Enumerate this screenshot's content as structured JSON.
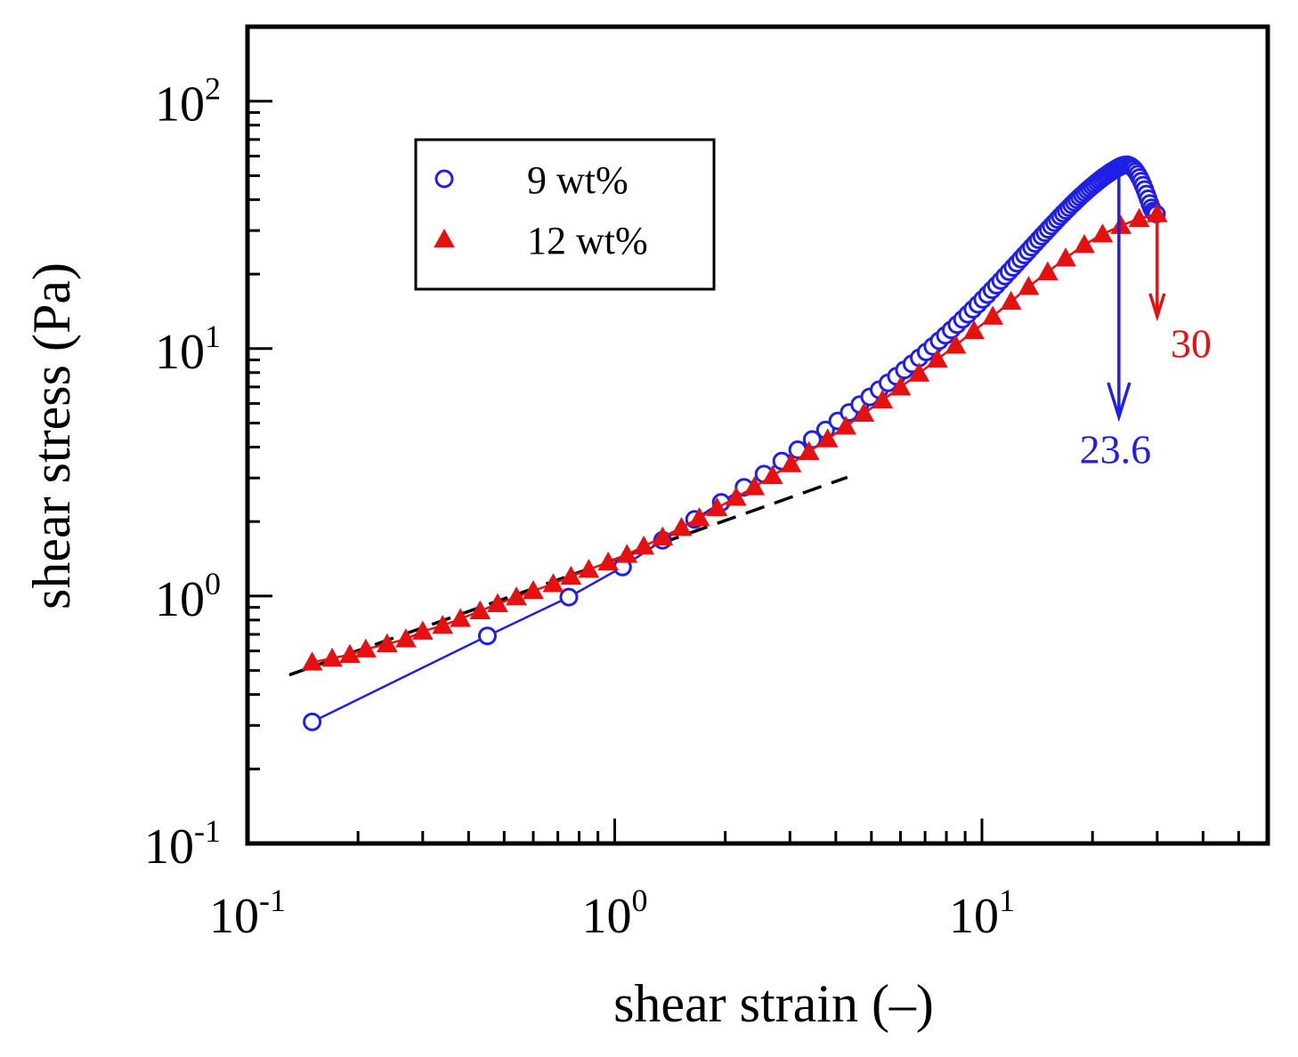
{
  "chart_data": {
    "type": "scatter",
    "xscale": "log",
    "yscale": "log",
    "xlim": [
      0.1,
      60
    ],
    "ylim": [
      0.1,
      200
    ],
    "xlabel": "shear strain (–)",
    "ylabel": "shear stress (Pa)",
    "xticks": [
      {
        "base": "10",
        "exp": "-1"
      },
      {
        "base": "10",
        "exp": "0"
      },
      {
        "base": "10",
        "exp": "1"
      }
    ],
    "yticks": [
      {
        "base": "10",
        "exp": "-1"
      },
      {
        "base": "10",
        "exp": "0"
      },
      {
        "base": "10",
        "exp": "1"
      },
      {
        "base": "10",
        "exp": "2"
      }
    ],
    "grid": false,
    "legend_position": "top-left",
    "colors": {
      "series_9": "#1f1fe6",
      "series_12": "#e61010",
      "fit": "#000000",
      "axes": "#000000"
    },
    "series": [
      {
        "name": "9 wt%",
        "marker": "open-circle",
        "line": "solid",
        "x": [
          0.15,
          0.45,
          0.75,
          1.05,
          1.35,
          1.65,
          1.95,
          2.25,
          2.55,
          2.85,
          3.15,
          3.45,
          3.75,
          4.05,
          4.35,
          4.65,
          4.95,
          5.25,
          5.55,
          5.85,
          6.15,
          6.45,
          6.75,
          7.05,
          7.35,
          7.65,
          7.95,
          8.25,
          8.55,
          8.85,
          9.15,
          9.45,
          9.75,
          10.05,
          10.35,
          10.65,
          10.95,
          11.25,
          11.55,
          11.85,
          12.15,
          12.45,
          12.75,
          13.05,
          13.35,
          13.65,
          13.95,
          14.25,
          14.55,
          14.85,
          15.15,
          15.45,
          15.75,
          16.05,
          16.35,
          16.65,
          16.95,
          17.25,
          17.55,
          17.85,
          18.15,
          18.45,
          18.75,
          19.05,
          19.35,
          19.65,
          19.95,
          20.25,
          20.55,
          20.85,
          21.15,
          21.45,
          21.75,
          22.05,
          22.35,
          22.65,
          22.95,
          23.25,
          23.55,
          23.85,
          24.15,
          24.45,
          24.75,
          25.05,
          25.35,
          25.65,
          25.95,
          26.25,
          26.55,
          26.85,
          27.15,
          27.45,
          27.75,
          28.05,
          28.35,
          28.65,
          28.95,
          29.25,
          29.55,
          29.85
        ],
        "y": [
          0.31,
          0.69,
          0.99,
          1.31,
          1.68,
          2.04,
          2.39,
          2.75,
          3.11,
          3.51,
          3.9,
          4.29,
          4.69,
          5.1,
          5.52,
          5.94,
          6.38,
          6.82,
          7.27,
          7.73,
          8.2,
          8.68,
          9.18,
          9.69,
          10.21,
          10.76,
          11.32,
          11.91,
          12.51,
          13.13,
          13.77,
          14.43,
          15.11,
          15.82,
          16.54,
          17.28,
          18.04,
          18.83,
          19.63,
          20.46,
          21.29,
          22.14,
          23.02,
          23.9,
          24.79,
          25.7,
          26.61,
          27.55,
          28.48,
          29.41,
          30.37,
          31.33,
          32.29,
          33.27,
          34.25,
          35.19,
          36.15,
          37.12,
          38.1,
          39.04,
          39.98,
          40.94,
          41.82,
          42.71,
          43.62,
          44.49,
          45.36,
          46.18,
          47.02,
          47.85,
          48.63,
          49.41,
          50.14,
          50.85,
          51.58,
          52.2,
          52.86,
          53.45,
          53.99,
          54.55,
          54.96,
          55.26,
          55.37,
          55.17,
          54.75,
          54.06,
          53.19,
          52.04,
          50.7,
          49.17,
          47.52,
          45.77,
          43.97,
          42.12,
          40.32,
          38.57,
          37.06,
          35.94,
          35.26,
          34.98
        ]
      },
      {
        "name": "12 wt%",
        "marker": "filled-triangle",
        "line": "solid",
        "x": [
          0.15,
          0.17,
          0.19,
          0.21,
          0.24,
          0.27,
          0.3,
          0.34,
          0.38,
          0.43,
          0.48,
          0.54,
          0.6,
          0.68,
          0.76,
          0.85,
          0.96,
          1.08,
          1.2,
          1.35,
          1.52,
          1.7,
          1.9,
          2.14,
          2.4,
          2.69,
          3.02,
          3.38,
          3.8,
          4.26,
          4.77,
          5.36,
          6.0,
          6.74,
          7.56,
          8.48,
          9.51,
          10.7,
          12.0,
          13.4,
          15.1,
          16.9,
          19.0,
          21.3,
          23.9,
          26.8,
          30.0
        ],
        "y": [
          0.54,
          0.56,
          0.58,
          0.61,
          0.64,
          0.67,
          0.72,
          0.76,
          0.81,
          0.87,
          0.93,
          0.99,
          1.05,
          1.12,
          1.2,
          1.28,
          1.37,
          1.47,
          1.59,
          1.73,
          1.89,
          2.07,
          2.27,
          2.5,
          2.76,
          3.06,
          3.42,
          3.83,
          4.31,
          4.85,
          5.47,
          6.19,
          6.98,
          7.95,
          9.05,
          10.3,
          11.8,
          13.5,
          15.5,
          17.8,
          20.4,
          23.2,
          26.3,
          29.0,
          31.4,
          33.5,
          35.0
        ]
      },
      {
        "name": "fit",
        "line": "dashed",
        "x": [
          0.13,
          4.3
        ],
        "y": [
          0.48,
          3.02
        ]
      }
    ],
    "annotations": [
      {
        "text": "23.6",
        "series": "9 wt%",
        "x": 23.6,
        "y_from": 55.3,
        "y_to": 5.3
      },
      {
        "text": "30",
        "series": "12 wt%",
        "x": 30,
        "y_from": 34,
        "y_to": 13.5
      }
    ]
  }
}
